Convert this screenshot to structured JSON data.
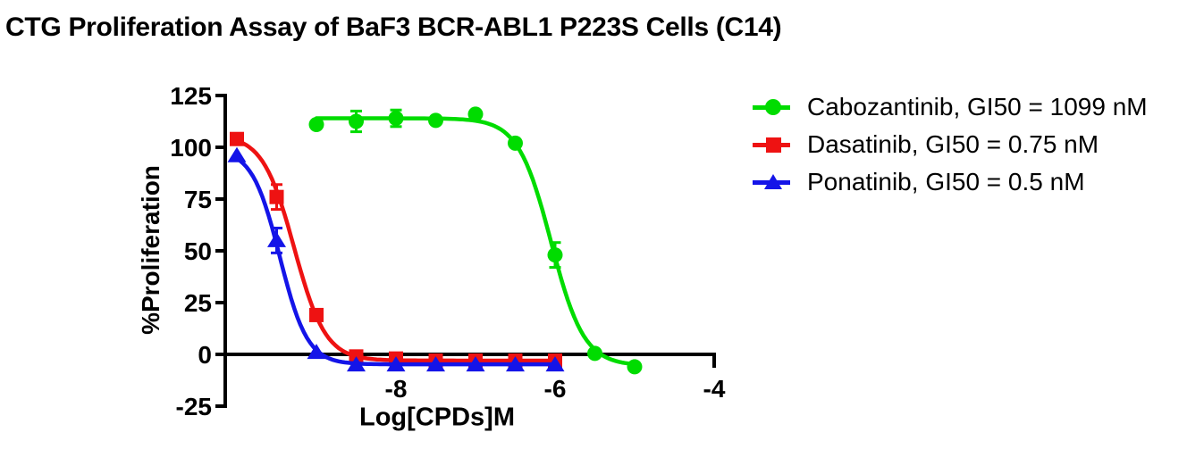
{
  "chart_data": {
    "type": "line",
    "title": "CTG Proliferation Assay of BaF3 BCR-ABL1 P223S Cells (C14)",
    "xlabel": "Log[CPDs]M",
    "ylabel": "%Proliferation",
    "x_ticks": [
      -8,
      -6,
      -4
    ],
    "y_ticks": [
      125,
      100,
      75,
      50,
      25,
      0,
      -25
    ],
    "x_range": [
      -10.15,
      -4
    ],
    "y_range": [
      -25,
      125
    ],
    "grid": false,
    "legend_position": "right",
    "axis_color": "#000000",
    "background_color": "#ffffff",
    "series": [
      {
        "name": "Cabozantinib",
        "gi50": "1099 nM",
        "legend_label": "Cabozantinib, GI50 = 1099 nM",
        "color": "#00DC00",
        "marker": "circle",
        "x": [
          -9,
          -8.5,
          -8,
          -7.5,
          -7,
          -6.5,
          -6,
          -5.5,
          -5
        ],
        "y": [
          111,
          112.5,
          114,
          113,
          116,
          102,
          48,
          0.5,
          -6
        ],
        "err": [
          0,
          5,
          4,
          0,
          0,
          0,
          6,
          0,
          0
        ],
        "fit": {
          "top": 114,
          "bottom": -5.5,
          "logec50": -6.05,
          "hill": 2.1
        }
      },
      {
        "name": "Dasatinib",
        "gi50": "0.75 nM",
        "legend_label": "Dasatinib, GI50 = 0.75 nM",
        "color": "#EE1212",
        "marker": "square",
        "x": [
          -10,
          -9.5,
          -9,
          -8.5,
          -8,
          -7.5,
          -7,
          -6.5,
          -6
        ],
        "y": [
          104,
          76,
          19,
          -1,
          -2,
          -3,
          -3,
          -3,
          -3
        ],
        "err": [
          0,
          6,
          0,
          0,
          0,
          0,
          0,
          0,
          0
        ],
        "fit": {
          "top": 106,
          "bottom": -3,
          "logec50": -9.28,
          "hill": 2.2
        }
      },
      {
        "name": "Ponatinib",
        "gi50": "0.5 nM",
        "legend_label": "Ponatinib, GI50 = 0.5 nM",
        "color": "#1414E8",
        "marker": "triangle",
        "x": [
          -10,
          -9.5,
          -9,
          -8.5,
          -8,
          -7.5,
          -7,
          -6.5,
          -6
        ],
        "y": [
          96,
          55,
          1,
          -5,
          -5,
          -5,
          -5,
          -5,
          -5
        ],
        "err": [
          0,
          6,
          0,
          0,
          0,
          0,
          0,
          0,
          0
        ],
        "fit": {
          "top": 99,
          "bottom": -4.8,
          "logec50": -9.46,
          "hill": 2.5
        }
      }
    ]
  }
}
